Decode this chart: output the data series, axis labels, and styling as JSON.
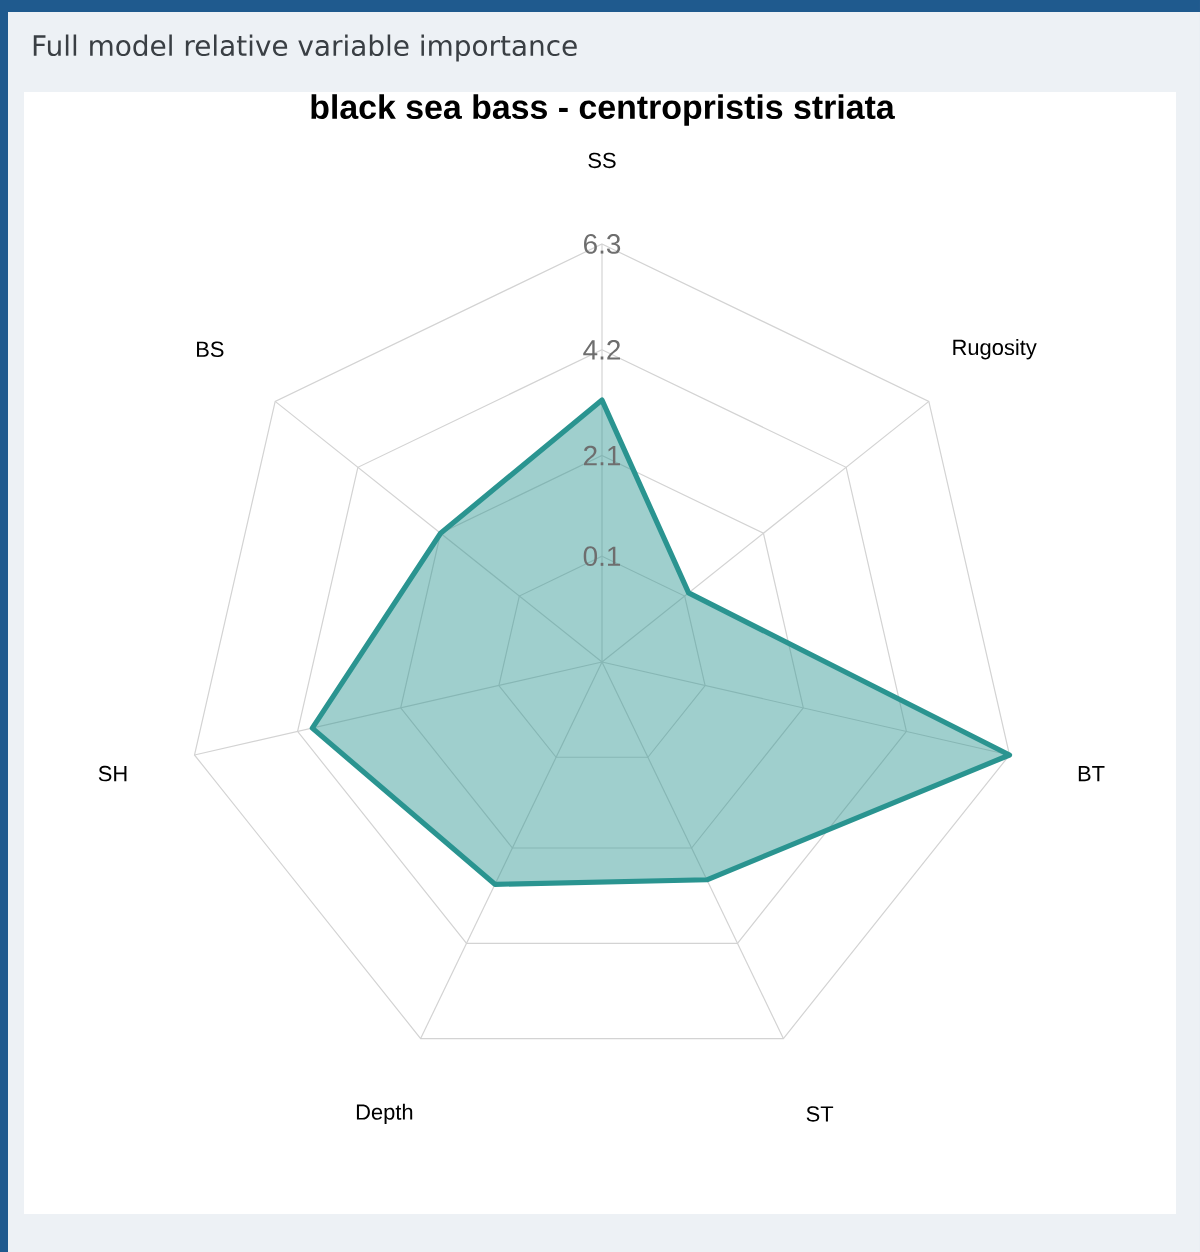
{
  "chart_data": {
    "type": "radar",
    "title": "black sea bass - centropristis striata",
    "annotations": [
      "Full model relative variable importance"
    ],
    "categories": [
      "SS",
      "Rugosity",
      "BT",
      "ST",
      "Depth",
      "SH",
      "BS"
    ],
    "series": [
      {
        "color": "#2a9490",
        "values": [
          3.2,
          0.2,
          6.3,
          2.8,
          2.9,
          3.9,
          2.1
        ]
      }
    ],
    "ylim": [
      -2,
      6.3
    ],
    "yticks": [
      0.1,
      2.1,
      4.2,
      6.3
    ],
    "grid": true
  }
}
